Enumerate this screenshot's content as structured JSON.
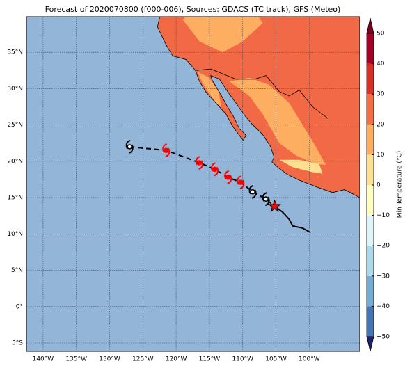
{
  "map": {
    "title": "Forecast of 2020070800 (f000-006), Sources: GDACS (TC track), GFS (Meteo)",
    "xlim": [
      -142.5,
      -92.4
    ],
    "ylim": [
      -6.15,
      39.9
    ],
    "xticks": [
      {
        "value": -140,
        "label": "140°W"
      },
      {
        "value": -135,
        "label": "135°W"
      },
      {
        "value": -130,
        "label": "130°W"
      },
      {
        "value": -125,
        "label": "125°W"
      },
      {
        "value": -120,
        "label": "120°W"
      },
      {
        "value": -115,
        "label": "115°W"
      },
      {
        "value": -110,
        "label": "110°W"
      },
      {
        "value": -105,
        "label": "105°W"
      },
      {
        "value": -100,
        "label": "100°W"
      }
    ],
    "yticks": [
      {
        "value": 35,
        "label": "35°N"
      },
      {
        "value": 30,
        "label": "30°N"
      },
      {
        "value": 25,
        "label": "25°N"
      },
      {
        "value": 20,
        "label": "20°N"
      },
      {
        "value": 15,
        "label": "15°N"
      },
      {
        "value": 10,
        "label": "10°N"
      },
      {
        "value": 5,
        "label": "5°N"
      },
      {
        "value": 0,
        "label": "0°"
      },
      {
        "value": -5,
        "label": "5°S"
      }
    ],
    "ocean_color": "#93b5d8",
    "forecast_track": {
      "lon": [
        -127,
        -121.5,
        -116.5,
        -114.2,
        -112.2,
        -110.3,
        -108.5,
        -106.5,
        -105.2
      ],
      "lat": [
        22,
        21.5,
        19.8,
        18.9,
        17.8,
        17.1,
        15.8,
        14.8,
        13.8
      ]
    },
    "past_track": {
      "lon": [
        -105.2,
        -104,
        -103,
        -102.5,
        -101,
        -99.8
      ],
      "lat": [
        13.8,
        13,
        12,
        11.1,
        10.8,
        10.2
      ]
    },
    "colorbar": {
      "label": "Min Temperature (°C)",
      "ticks": [
        {
          "value": -50,
          "label": "−50"
        },
        {
          "value": -40,
          "label": "−40"
        },
        {
          "value": -30,
          "label": "−30"
        },
        {
          "value": -20,
          "label": "−20"
        },
        {
          "value": -10,
          "label": "−10"
        },
        0,
        10,
        20,
        30,
        40,
        50
      ],
      "colors": [
        "#313695",
        "#4575b4",
        "#74add1",
        "#abd9e9",
        "#e0f3f8",
        "#ffffbf",
        "#fee090",
        "#fdae61",
        "#f46d43",
        "#d73027",
        "#a50026"
      ],
      "under": "#1d2270",
      "over": "#7a0022"
    }
  }
}
